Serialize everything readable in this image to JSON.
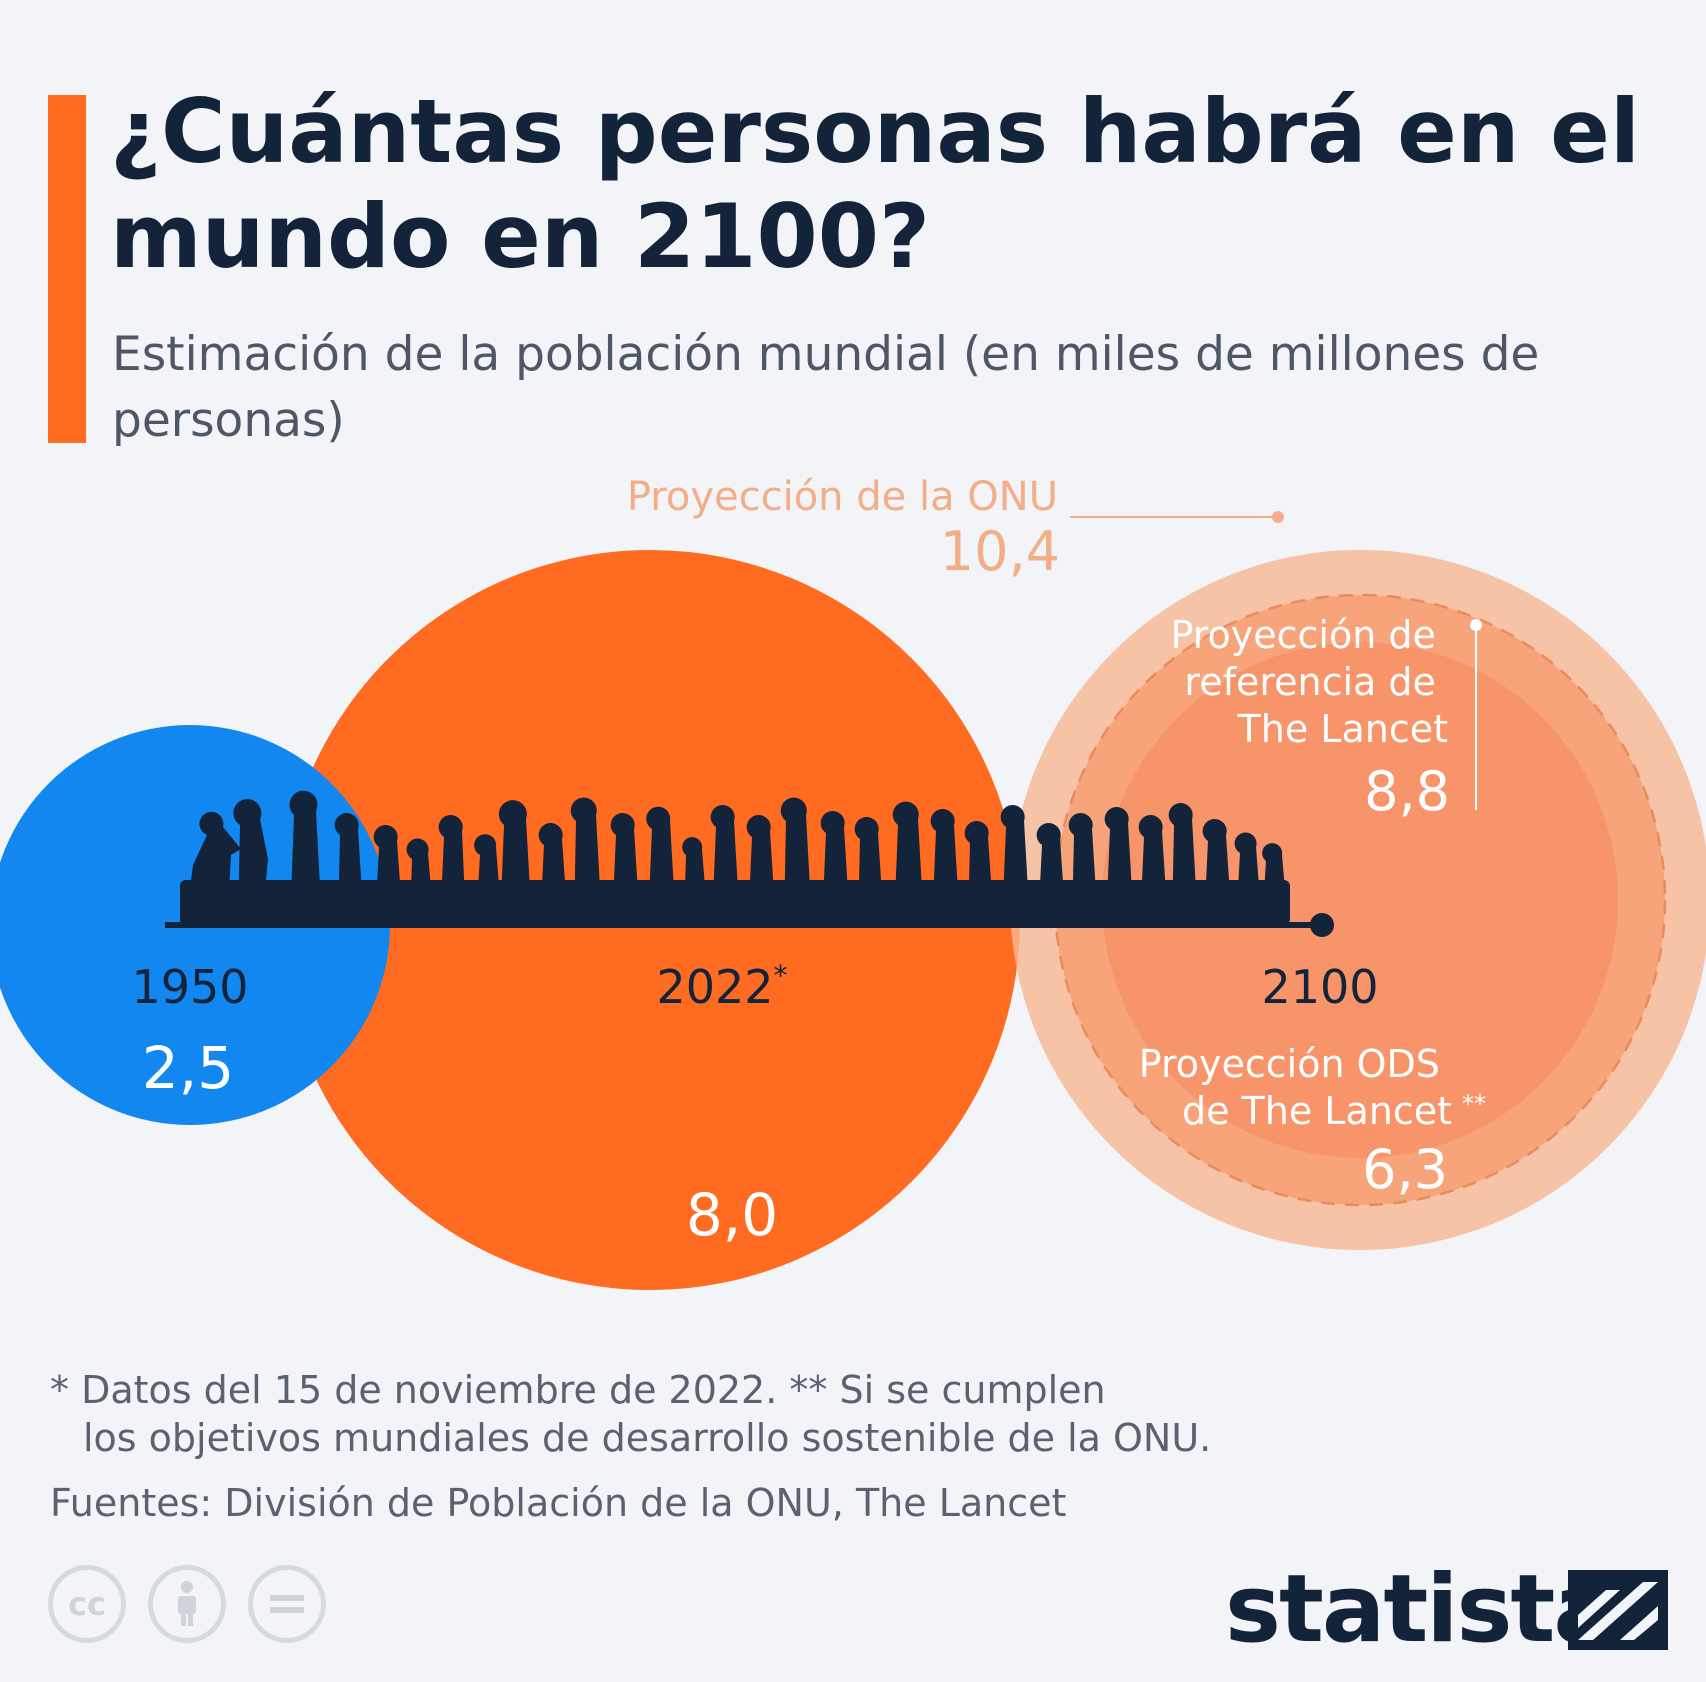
{
  "header": {
    "title": "¿Cuántas personas habrá en el mundo en 2100?",
    "subtitle": "Estimación de la población mundial (en miles de millones de personas)"
  },
  "chart_data": {
    "type": "bubble",
    "unit": "miles de millones",
    "series": [
      {
        "year_label": "1950",
        "value": 2.5,
        "value_label": "2,5",
        "color": "#1287ef"
      },
      {
        "year_label": "2022*",
        "value": 8.0,
        "value_label": "8,0",
        "color": "#ff6b21"
      },
      {
        "year_label": "2100",
        "projections": [
          {
            "name": "Proyección de la ONU",
            "value": 10.4,
            "value_label": "10,4",
            "color": "#f6c3a6"
          },
          {
            "name": "Proyección de referencia de The Lancet",
            "value": 8.8,
            "value_label": "8,8",
            "color": "#f8a47a"
          },
          {
            "name": "Proyección ODS de The Lancet **",
            "value": 6.3,
            "value_label": "6,3",
            "color": "#f7946a"
          }
        ]
      }
    ],
    "labels": {
      "year_1950": "1950",
      "year_2022": "2022",
      "year_2022_mark": "*",
      "year_2100": "2100",
      "val_1950": "2,5",
      "val_2022": "8,0",
      "onu_name": "Proyección de la ONU",
      "onu_value": "10,4",
      "lancet_ref_line1": "Proyección de",
      "lancet_ref_line2": "referencia de",
      "lancet_ref_line3": "The Lancet",
      "lancet_ref_value": "8,8",
      "lancet_ods_line1": "Proyección ODS",
      "lancet_ods_line2": "de The Lancet",
      "lancet_ods_mark": "**",
      "lancet_ods_value": "6,3"
    }
  },
  "footnotes": {
    "line1": "* Datos del 15 de noviembre de 2022.     ** Si se cumplen",
    "line2": "los objetivos mundiales de desarrollo sostenible de la ONU.",
    "sources": "Fuentes: División de Población de la ONU, The Lancet"
  },
  "license_icons": [
    {
      "name": "cc-icon",
      "glyph": "cc"
    },
    {
      "name": "attribution-icon",
      "glyph": "person"
    },
    {
      "name": "no-derivatives-icon",
      "glyph": "="
    }
  ],
  "brand": {
    "name": "statista"
  }
}
